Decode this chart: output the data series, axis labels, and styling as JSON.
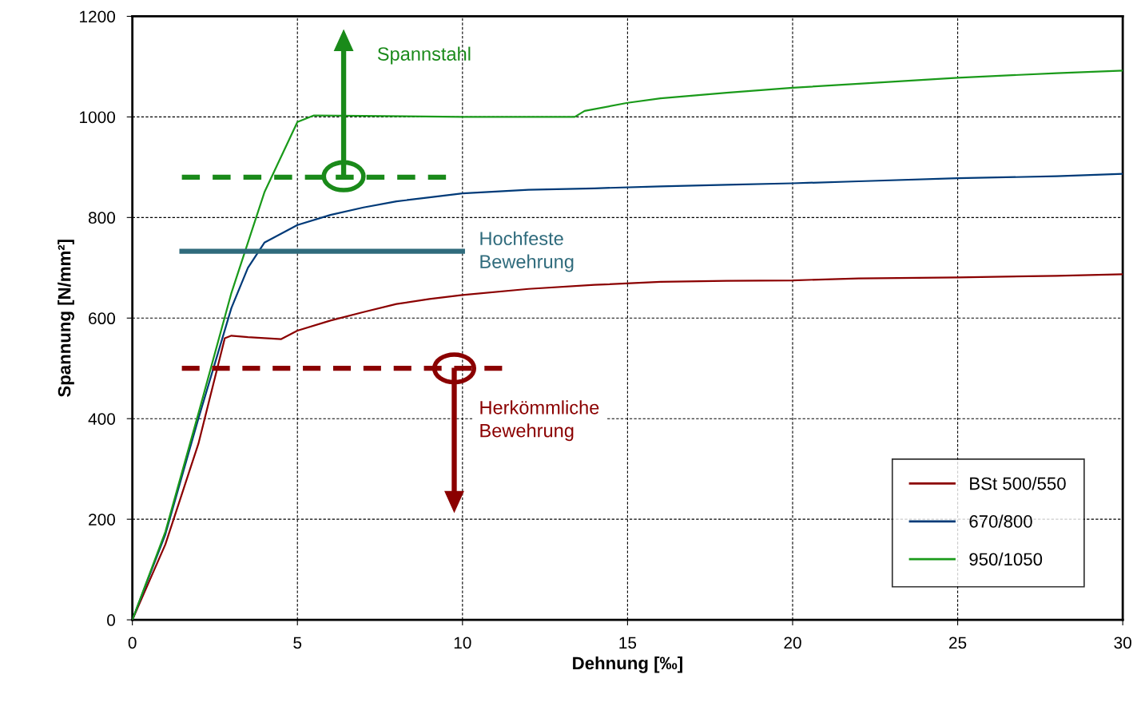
{
  "chart_data": {
    "type": "line",
    "xlabel": "Dehnung [‰]",
    "ylabel": "Spannung [N/mm²]",
    "xlim": [
      0,
      30
    ],
    "ylim": [
      0,
      1200
    ],
    "xticks": [
      0,
      5,
      10,
      15,
      20,
      25,
      30
    ],
    "yticks": [
      0,
      200,
      400,
      600,
      800,
      1000,
      1200
    ],
    "grid": true,
    "legend": "bottom right",
    "marker": "none",
    "series": [
      {
        "name": "BSt 500/550",
        "color": "#8b0000",
        "x": [
          0,
          1,
          2,
          2.8,
          3,
          3.5,
          4,
          4.5,
          5,
          6,
          7,
          8,
          9,
          10,
          12,
          14,
          16,
          18,
          20,
          22,
          25,
          28,
          30
        ],
        "values": [
          0,
          150,
          350,
          560,
          565,
          562,
          560,
          558,
          575,
          595,
          612,
          628,
          638,
          646,
          658,
          666,
          672,
          674,
          675,
          679,
          681,
          684,
          687
        ]
      },
      {
        "name": "670/800",
        "color": "#003a78",
        "x": [
          0,
          1,
          2,
          3,
          3.5,
          4,
          5,
          6,
          7,
          8,
          9,
          10,
          12,
          14,
          16,
          18,
          20,
          22,
          25,
          28,
          30
        ],
        "values": [
          0,
          170,
          400,
          620,
          700,
          750,
          785,
          805,
          820,
          832,
          840,
          848,
          855,
          858,
          862,
          865,
          868,
          872,
          878,
          882,
          887
        ]
      },
      {
        "name": "950/1050",
        "color": "#1a9a1a",
        "x": [
          0,
          1,
          2,
          3,
          4,
          5,
          5.5,
          7,
          10,
          13.4,
          13.7,
          15,
          16,
          18,
          20,
          22,
          25,
          28,
          30
        ],
        "values": [
          0,
          175,
          410,
          650,
          850,
          990,
          1003,
          1002,
          1000,
          1000,
          1012,
          1028,
          1037,
          1048,
          1058,
          1066,
          1078,
          1087,
          1092
        ]
      },
      {
        "color": "#1a8a1a",
        "line_style": "dashed",
        "x": [
          1.5,
          9.5
        ],
        "values": [
          880,
          880
        ]
      },
      {
        "color": "#2f6b7c",
        "line_style": "solid",
        "x": [
          1.5,
          10
        ],
        "values": [
          733,
          733
        ]
      },
      {
        "color": "#8b0000",
        "line_style": "dashed",
        "x": [
          1.5,
          11.2
        ],
        "values": [
          500,
          500
        ]
      }
    ],
    "annotations": [
      "Spannstahl",
      "Hochfeste\nBewehrung",
      "Herkömmliche\nBewehrung"
    ]
  }
}
